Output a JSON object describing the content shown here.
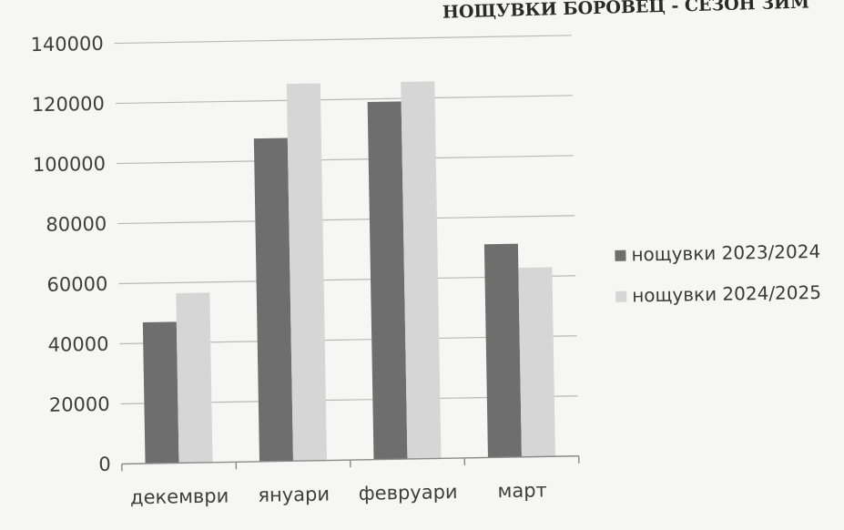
{
  "chart_data": {
    "type": "bar",
    "title": "НОЩУВКИ БОРОВЕЦ - СЕЗОН ЗИМ",
    "categories": [
      "декември",
      "януари",
      "февруари",
      "март"
    ],
    "series": [
      {
        "name": "нощувки 2023/2024",
        "values": [
          47000,
          107500,
          119000,
          71000
        ]
      },
      {
        "name": "нощувки 2024/2025",
        "values": [
          56500,
          125500,
          125500,
          63000
        ]
      }
    ],
    "y_ticks": [
      "0",
      "20000",
      "40000",
      "60000",
      "80000",
      "100000",
      "120000",
      "140000"
    ],
    "ylim": [
      0,
      140000
    ],
    "grid": true,
    "legend_position": "right",
    "colors": {
      "series_1": "#6e6e6e",
      "series_2": "#d6d6d6",
      "grid": "#b9b9b9",
      "axis": "#8a8a8a",
      "background": "#f6f6f4"
    }
  }
}
